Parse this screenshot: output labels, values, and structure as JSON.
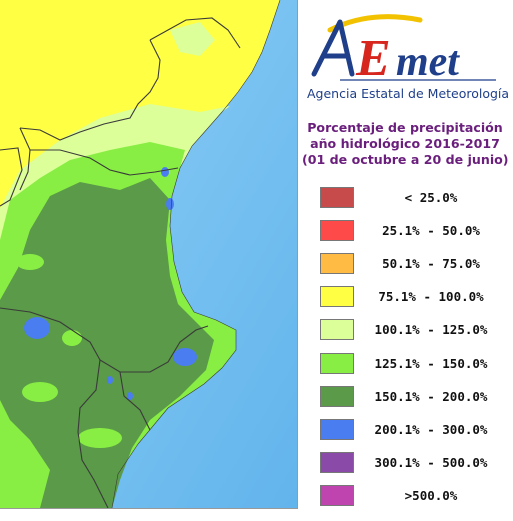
{
  "logo": {
    "wordmark": "AEmet",
    "subtitle": "Agencia Estatal de Meteorología",
    "colors": {
      "a": "#1f3f8a",
      "e": "#d7261e",
      "met": "#1f3f8a",
      "swoosh": "#f2c200"
    }
  },
  "title": {
    "line1": "Porcentaje de precipitación",
    "line2": "año hidrológico 2016-2017",
    "line3": "(01 de octubre a 20 de junio)",
    "color": "#6b1f7d"
  },
  "legend": [
    {
      "label": "< 25.0%",
      "color": "#c84b4b"
    },
    {
      "label": "25.1% - 50.0%",
      "color": "#ff4a4a"
    },
    {
      "label": "50.1% - 75.0%",
      "color": "#ffbb44"
    },
    {
      "label": "75.1% - 100.0%",
      "color": "#ffff44"
    },
    {
      "label": "100.1% - 125.0%",
      "color": "#ddff99"
    },
    {
      "label": "125.1% - 150.0%",
      "color": "#88ee44"
    },
    {
      "label": "150.1% - 200.0%",
      "color": "#5a9a48"
    },
    {
      "label": "200.1% - 300.0%",
      "color": "#4a7df0"
    },
    {
      "label": "300.1% - 500.0%",
      "color": "#8a4aa8"
    },
    {
      "label": ">500.0%",
      "color": "#c044b0"
    }
  ],
  "map": {
    "sea_color": "#72bff0",
    "land_colors": {
      "yellow": "#ffff44",
      "light": "#ddff99",
      "mid": "#88ee44",
      "dark": "#5a9a48",
      "blue": "#4a7df0"
    },
    "border_color": "#3a3a3a"
  }
}
